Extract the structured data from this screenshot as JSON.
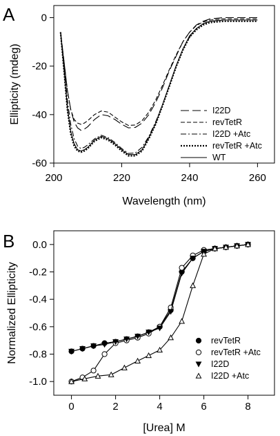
{
  "chart_data": [
    {
      "type": "line",
      "panel_label": "A",
      "xlabel": "Wavelength (nm)",
      "ylabel": "Ellipticity (mdeg)",
      "xlim": [
        200,
        265
      ],
      "ylim": [
        -60,
        5
      ],
      "xticks": [
        200,
        220,
        240,
        260
      ],
      "yticks": [
        0,
        -20,
        -40,
        -60
      ],
      "legend_position": "lower-right",
      "x": [
        202,
        203,
        204,
        205,
        206,
        207,
        208,
        209,
        210,
        212,
        214,
        216,
        218,
        220,
        222,
        224,
        226,
        228,
        230,
        232,
        234,
        236,
        238,
        240,
        242,
        244,
        246,
        250,
        255,
        260
      ],
      "series": [
        {
          "name": "I22D",
          "dash": "long-dash",
          "values": [
            -6,
            -18,
            -30,
            -38,
            -43,
            -45.5,
            -46.5,
            -46,
            -45,
            -42,
            -40,
            -40.5,
            -42,
            -44,
            -45.5,
            -45.3,
            -43.5,
            -40,
            -35,
            -29,
            -22,
            -16,
            -10,
            -6,
            -3,
            -1.5,
            -0.5,
            0,
            0,
            0
          ]
        },
        {
          "name": "revTetR",
          "dash": "short-dash",
          "values": [
            -6,
            -18,
            -30,
            -38,
            -42,
            -43.5,
            -44,
            -43.5,
            -42.5,
            -40,
            -38.5,
            -39,
            -41,
            -43,
            -44.5,
            -44.3,
            -42.5,
            -39,
            -34,
            -28,
            -21.5,
            -15.5,
            -10,
            -6,
            -3.2,
            -1.8,
            -1,
            -0.5,
            -0.5,
            -0.5
          ]
        },
        {
          "name": "I22D +Atc",
          "dash": "dash-dot",
          "values": [
            -6,
            -20,
            -34,
            -44,
            -50,
            -53,
            -54,
            -53.5,
            -52.5,
            -50,
            -48.5,
            -49.5,
            -51.5,
            -54,
            -56,
            -55.8,
            -53.5,
            -49,
            -43,
            -36,
            -28,
            -20,
            -13,
            -8,
            -4.5,
            -2.5,
            -1.5,
            -1,
            -1,
            -1
          ]
        },
        {
          "name": "revTetR +Atc",
          "dash": "dotted",
          "values": [
            -6,
            -22,
            -38,
            -48,
            -53,
            -55,
            -55.5,
            -55,
            -54,
            -51,
            -49.5,
            -50.5,
            -52.5,
            -55,
            -57,
            -57,
            -55,
            -50,
            -44,
            -36.5,
            -28.5,
            -20.5,
            -13.5,
            -8,
            -5,
            -3,
            -2,
            -1.5,
            -1.5,
            -1.5
          ]
        },
        {
          "name": "WT",
          "dash": "solid",
          "values": [
            -6,
            -21,
            -37,
            -47,
            -52,
            -54.5,
            -55,
            -54.5,
            -53.5,
            -50.5,
            -49,
            -50,
            -52,
            -54.5,
            -56.5,
            -56.5,
            -54.5,
            -49.5,
            -43.5,
            -36,
            -28,
            -20,
            -13,
            -7.5,
            -4.5,
            -2.5,
            -1.5,
            -1,
            -1,
            -1
          ]
        }
      ]
    },
    {
      "type": "line",
      "panel_label": "B",
      "xlabel": "[Urea] M",
      "ylabel": "Normalized Ellipticity",
      "xlim": [
        -0.8,
        9.2
      ],
      "ylim": [
        -1.1,
        0.1
      ],
      "xticks": [
        0,
        2,
        4,
        6,
        8
      ],
      "yticks": [
        0.0,
        -0.2,
        -0.4,
        -0.6,
        -0.8,
        -1.0
      ],
      "ytick_labels": [
        "0.0",
        "-0.2",
        "-0.4",
        "-0.6",
        "-0.8",
        "-1.0"
      ],
      "legend_position": "lower-right",
      "series": [
        {
          "name": "revTetR",
          "marker": "filled-circle",
          "x": [
            0,
            0.5,
            1.0,
            1.5,
            2.0,
            2.5,
            3.0,
            3.5,
            4.0,
            4.5,
            5.0,
            5.5,
            6.0,
            6.5,
            7.0,
            7.5,
            8.0
          ],
          "values": [
            -0.78,
            -0.76,
            -0.74,
            -0.72,
            -0.71,
            -0.69,
            -0.67,
            -0.64,
            -0.6,
            -0.48,
            -0.2,
            -0.1,
            -0.05,
            -0.03,
            -0.02,
            -0.01,
            0.0
          ]
        },
        {
          "name": "revTetR +Atc",
          "marker": "open-circle",
          "x": [
            0,
            0.5,
            1.0,
            1.5,
            2.0,
            2.5,
            3.0,
            3.5,
            4.0,
            4.5,
            5.0,
            5.5,
            6.0,
            6.5,
            7.0,
            7.5,
            8.0
          ],
          "values": [
            -1.0,
            -0.97,
            -0.92,
            -0.8,
            -0.72,
            -0.7,
            -0.68,
            -0.65,
            -0.6,
            -0.46,
            -0.17,
            -0.08,
            -0.04,
            -0.03,
            -0.02,
            -0.01,
            0.0
          ]
        },
        {
          "name": "I22D",
          "marker": "filled-triangle-down",
          "x": [
            0,
            0.5,
            1.0,
            1.5,
            2.0,
            2.5,
            3.0,
            3.5,
            4.0,
            4.5,
            5.0,
            5.5,
            6.0,
            6.5,
            7.0,
            7.5,
            8.0
          ],
          "values": [
            -0.78,
            -0.76,
            -0.74,
            -0.73,
            -0.71,
            -0.69,
            -0.67,
            -0.64,
            -0.61,
            -0.49,
            -0.21,
            -0.1,
            -0.05,
            -0.03,
            -0.02,
            -0.01,
            0.0
          ]
        },
        {
          "name": "I22D +Atc",
          "marker": "open-triangle-up",
          "x": [
            0,
            0.6,
            1.2,
            1.8,
            2.4,
            3.0,
            3.5,
            4.0,
            4.5,
            5.0,
            5.5,
            6.0,
            6.5,
            7.0,
            7.5,
            8.0
          ],
          "values": [
            -1.0,
            -0.98,
            -0.96,
            -0.95,
            -0.9,
            -0.85,
            -0.81,
            -0.77,
            -0.68,
            -0.56,
            -0.3,
            -0.07,
            -0.03,
            -0.02,
            -0.01,
            0.0
          ]
        }
      ]
    }
  ]
}
